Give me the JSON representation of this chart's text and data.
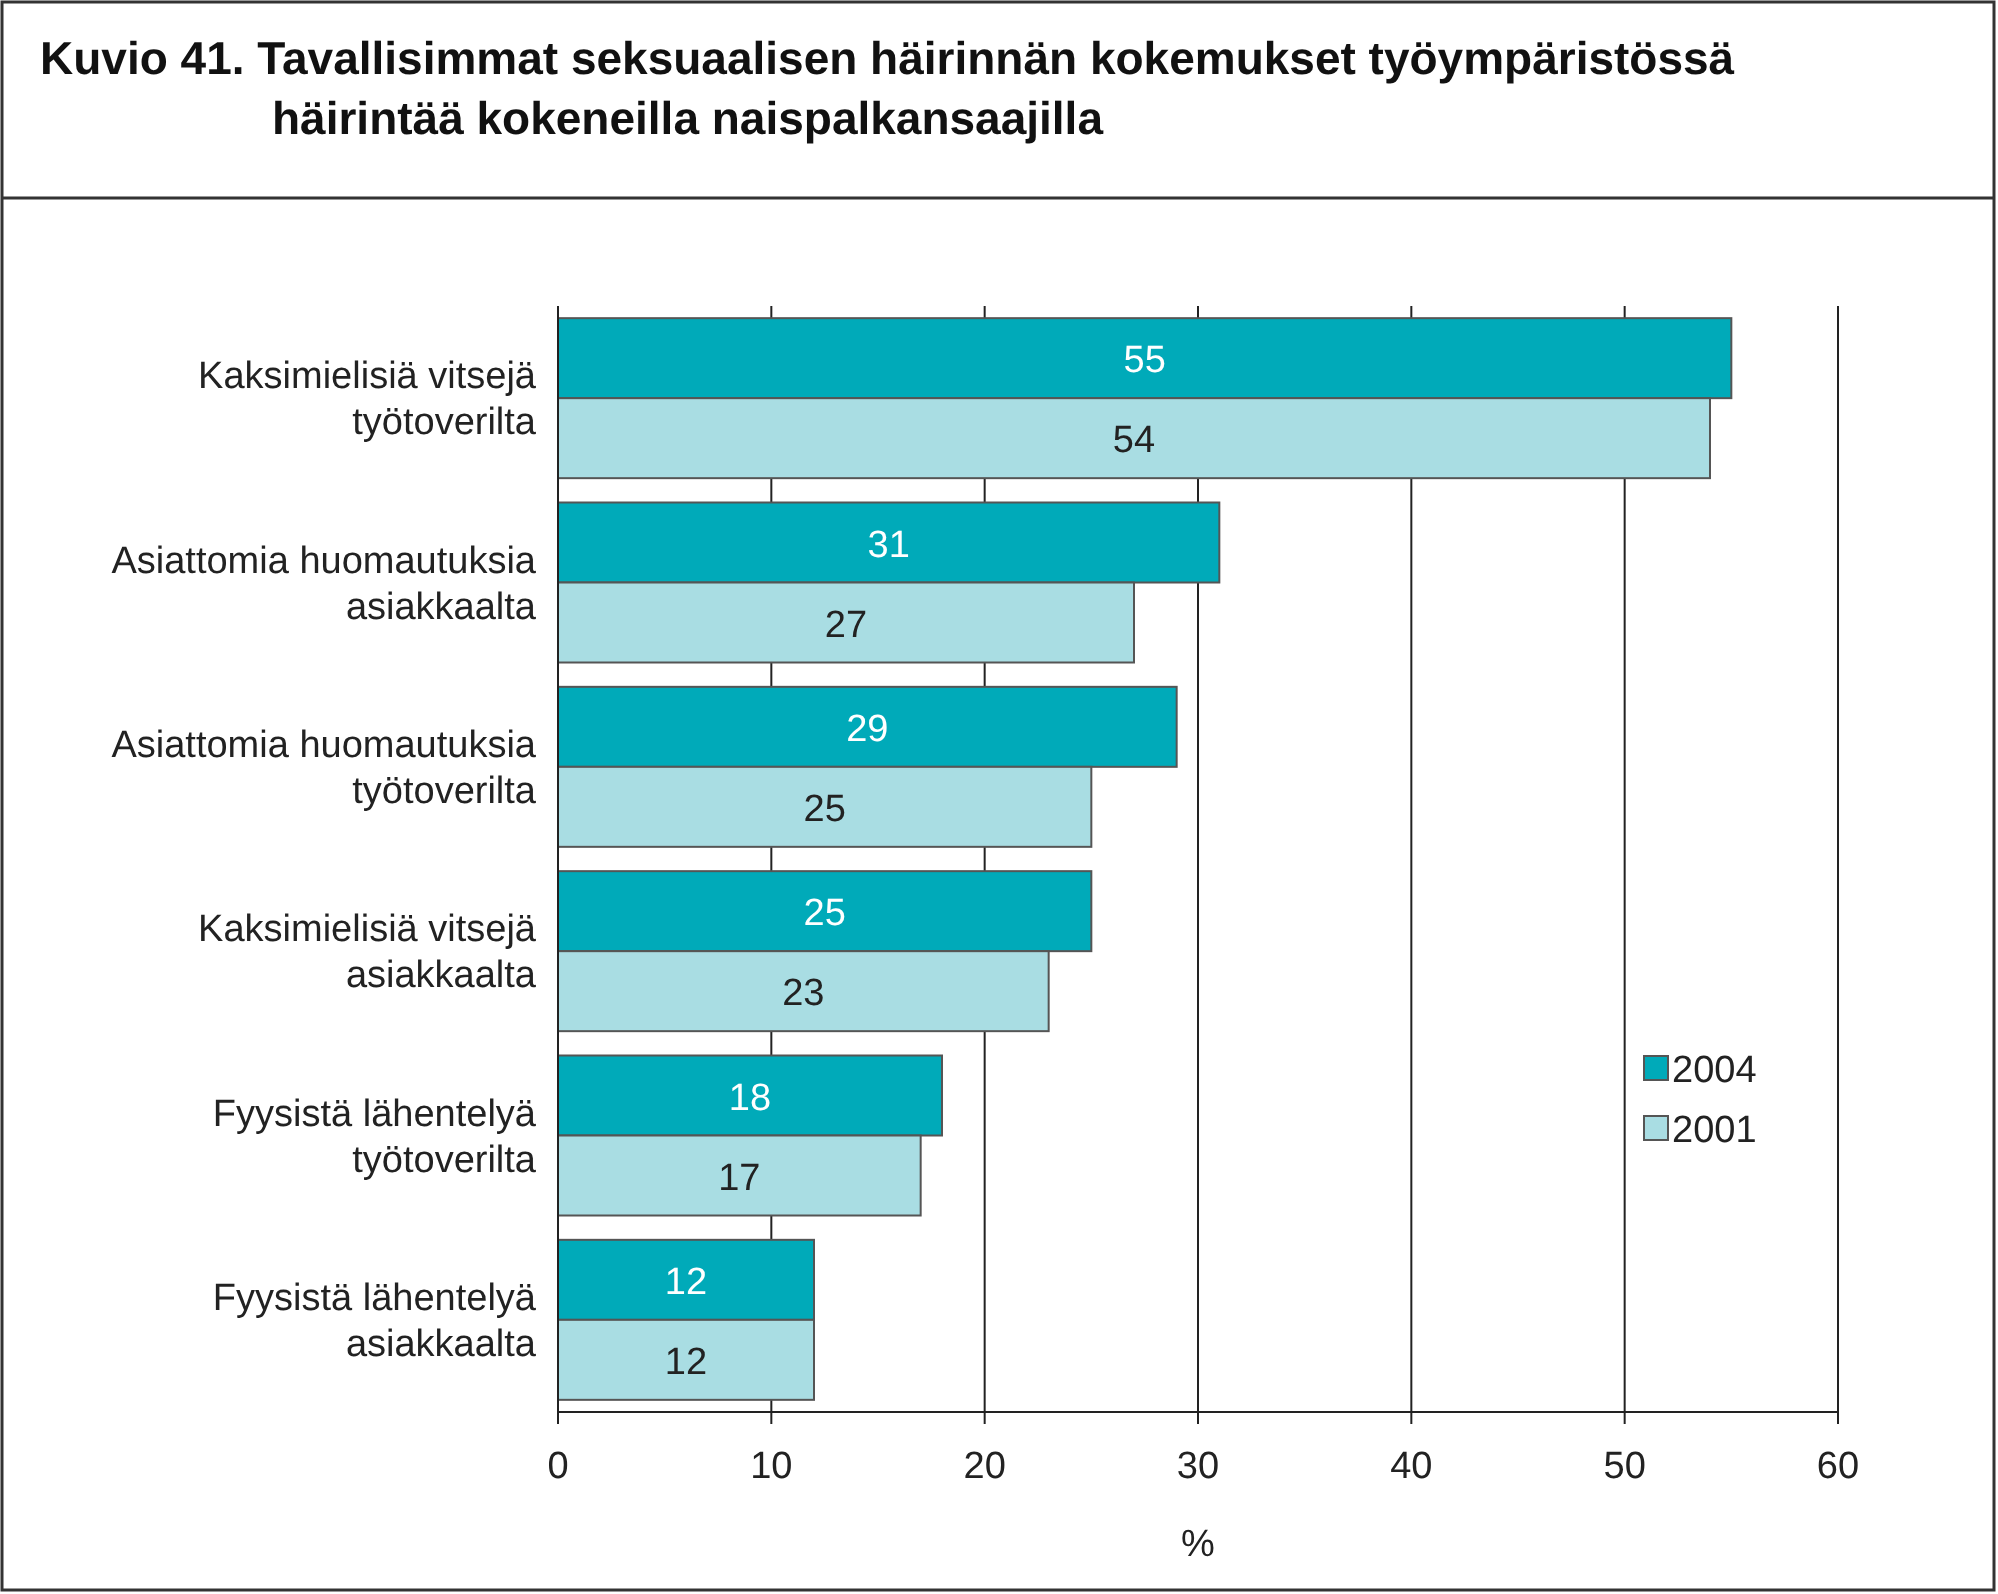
{
  "chart_data": {
    "type": "bar",
    "orientation": "horizontal",
    "title": "Kuvio 41. Tavallisimmat seksuaalisen häirinnän kokemukset työympäristössä\nhäirintää kokeneilla naispalkansaajilla",
    "xlabel": "%",
    "categories": [
      "Kaksimielisiä vitsejä työtoverilta",
      "Asiattomia huomautuksia asiakkaalta",
      "Asiattomia huomautuksia työtoverilta",
      "Kaksimielisiä vitsejä asiakkaalta",
      "Fyysistä lähentelyä työtoverilta",
      "Fyysistä lähentelyä asiakkaalta"
    ],
    "series": [
      {
        "name": "2004",
        "color": "#00aab9",
        "values": [
          55,
          31,
          29,
          25,
          18,
          12
        ]
      },
      {
        "name": "2001",
        "color": "#a9dde3",
        "values": [
          54,
          27,
          25,
          23,
          17,
          12
        ]
      }
    ],
    "xlim": [
      0,
      60
    ],
    "xticks": [
      0,
      10,
      20,
      30,
      40,
      50,
      60
    ],
    "grid": "x",
    "legend": "right",
    "data_labels": true
  }
}
